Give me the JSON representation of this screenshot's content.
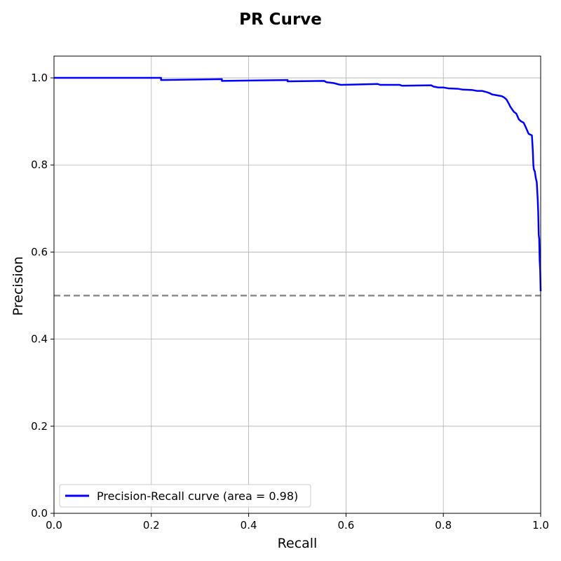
{
  "chart_data": {
    "type": "line",
    "title": "PR Curve",
    "xlabel": "Recall",
    "ylabel": "Precision",
    "xlim": [
      0,
      1
    ],
    "ylim": [
      0,
      1.05
    ],
    "grid": true,
    "legend_position": "lower-left",
    "x_ticks": [
      "0.0",
      "0.2",
      "0.4",
      "0.6",
      "0.8",
      "1.0"
    ],
    "y_ticks": [
      "0.0",
      "0.2",
      "0.4",
      "0.6",
      "0.8",
      "1.0"
    ],
    "series": [
      {
        "name": "Precision-Recall curve (area = 0.98)",
        "color": "#0000ff",
        "x": [
          0.0,
          0.22,
          0.22,
          0.345,
          0.345,
          0.48,
          0.48,
          0.555,
          0.56,
          0.575,
          0.585,
          0.59,
          0.665,
          0.67,
          0.71,
          0.715,
          0.775,
          0.78,
          0.79,
          0.8,
          0.81,
          0.83,
          0.84,
          0.86,
          0.87,
          0.88,
          0.89,
          0.895,
          0.9,
          0.91,
          0.92,
          0.925,
          0.93,
          0.935,
          0.937,
          0.94,
          0.945,
          0.95,
          0.955,
          0.96,
          0.965,
          0.968,
          0.972,
          0.975,
          0.978,
          0.982,
          0.983,
          0.984,
          0.985,
          0.986,
          0.988,
          0.99,
          0.992,
          0.993,
          0.994,
          0.995,
          0.996,
          0.997,
          0.998,
          0.999,
          1.0
        ],
        "y": [
          1.0,
          1.0,
          0.995,
          0.997,
          0.993,
          0.995,
          0.992,
          0.993,
          0.99,
          0.988,
          0.985,
          0.984,
          0.986,
          0.984,
          0.984,
          0.982,
          0.983,
          0.98,
          0.978,
          0.978,
          0.976,
          0.975,
          0.973,
          0.972,
          0.97,
          0.97,
          0.967,
          0.965,
          0.962,
          0.96,
          0.958,
          0.955,
          0.95,
          0.94,
          0.935,
          0.93,
          0.922,
          0.918,
          0.905,
          0.9,
          0.897,
          0.89,
          0.88,
          0.872,
          0.87,
          0.868,
          0.85,
          0.83,
          0.8,
          0.79,
          0.785,
          0.77,
          0.76,
          0.74,
          0.72,
          0.69,
          0.64,
          0.63,
          0.58,
          0.56,
          0.51
        ]
      },
      {
        "name": "",
        "color": "#808080",
        "dashed": true,
        "x": [
          0.0,
          1.0
        ],
        "y": [
          0.5,
          0.5
        ]
      }
    ]
  }
}
